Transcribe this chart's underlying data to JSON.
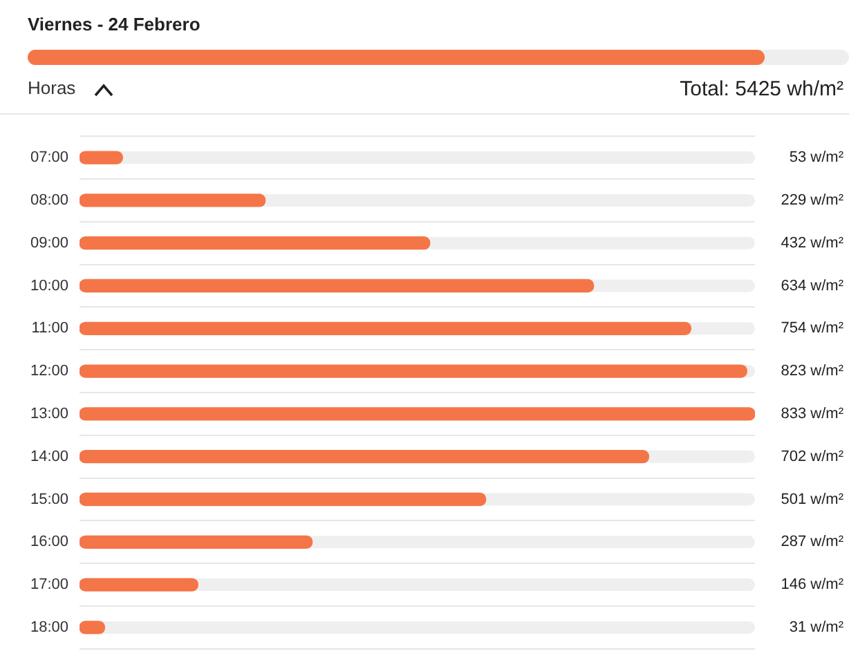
{
  "chart_data": {
    "type": "bar",
    "orientation": "horizontal",
    "title": "Viernes - 24 Febrero",
    "ylabel": "Horas",
    "annotations": [
      "Total: 5425 wh/m²"
    ],
    "categories": [
      "07:00",
      "08:00",
      "09:00",
      "10:00",
      "11:00",
      "12:00",
      "13:00",
      "14:00",
      "15:00",
      "16:00",
      "17:00",
      "18:00"
    ],
    "values": [
      53,
      229,
      432,
      634,
      754,
      823,
      833,
      702,
      501,
      287,
      146,
      31
    ],
    "value_labels": [
      "53 w/m²",
      "229 w/m²",
      "432 w/m²",
      "634 w/m²",
      "754 w/m²",
      "823 w/m²",
      "833 w/m²",
      "702 w/m²",
      "501 w/m²",
      "287 w/m²",
      "146 w/m²",
      "31 w/m²"
    ],
    "color": "#f47547",
    "xlim": [
      0,
      833
    ],
    "grid": "y",
    "legend": false,
    "tick_labels": "y"
  }
}
